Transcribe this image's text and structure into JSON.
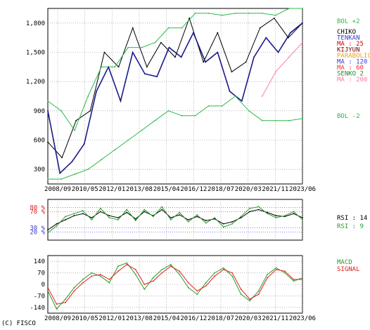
{
  "copyright": "(C) FISCO",
  "chart_data": [
    {
      "type": "line",
      "panel": "price",
      "x_labels": [
        "2008/09",
        "2010/05",
        "2012/01",
        "2013/08",
        "2015/04",
        "2016/12",
        "2018/07",
        "2020/03",
        "2021/11",
        "2023/06"
      ],
      "y_ticks": [
        300,
        600,
        900,
        1200,
        1500,
        1800
      ],
      "ylim": [
        150,
        1950
      ],
      "legend": [
        {
          "label": "BOL +2",
          "color": "#2db84b"
        },
        {
          "label": "CHIKO",
          "color": "#000000"
        },
        {
          "label": "TENKAN",
          "color": "#3b3bd0"
        },
        {
          "label": "MA : 25",
          "color": "#d00000"
        },
        {
          "label": "KIJYUN",
          "color": "#7a0000"
        },
        {
          "label": "PARABOLIC",
          "color": "#f0a020"
        },
        {
          "label": "MA : 120",
          "color": "#3b3bd0"
        },
        {
          "label": "MA : 60",
          "color": "#ff3030"
        },
        {
          "label": "SENKO 2",
          "color": "#2a8a2a"
        },
        {
          "label": "MA : 200",
          "color": "#ff7aa0"
        },
        {
          "label": "BOL -2",
          "color": "#2db84b"
        }
      ],
      "series": [
        {
          "name": "CHIKO",
          "values": [
            580,
            420,
            800,
            900,
            1500,
            1350,
            1750,
            1350,
            1600,
            1450,
            1850,
            1400,
            1700,
            1300,
            1400,
            1750,
            1850,
            1650,
            1800
          ]
        },
        {
          "name": "PRICE",
          "values": [
            900,
            260,
            380,
            560,
            1100,
            1350,
            1000,
            1500,
            1280,
            1250,
            1550,
            1450,
            1700,
            1400,
            1500,
            1100,
            1000,
            1450,
            1650,
            1500,
            1700,
            1800
          ]
        },
        {
          "name": "MA : 200",
          "values": [
            null,
            null,
            null,
            null,
            null,
            null,
            null,
            null,
            null,
            null,
            null,
            null,
            null,
            null,
            null,
            null,
            1050,
            1300,
            1450,
            1600
          ]
        },
        {
          "name": "BOL +2",
          "values": [
            1000,
            900,
            700,
            1050,
            1350,
            1350,
            1550,
            1550,
            1600,
            1750,
            1750,
            1900,
            1900,
            1880,
            1900,
            1900,
            1900,
            1880,
            1950,
            1950
          ]
        },
        {
          "name": "BOL -2",
          "values": [
            200,
            200,
            250,
            300,
            400,
            500,
            600,
            700,
            800,
            900,
            850,
            850,
            950,
            950,
            1050,
            900,
            800,
            800,
            800,
            820
          ]
        }
      ]
    },
    {
      "type": "line",
      "panel": "rsi",
      "y_ticks": [
        20,
        30,
        70,
        80
      ],
      "y_labels": [
        "20 %",
        "30 %",
        "70 %",
        "80 %"
      ],
      "ylim": [
        0,
        100
      ],
      "legend": [
        {
          "label": "RSI : 14",
          "color": "#000000"
        },
        {
          "label": "RSI : 9",
          "color": "#2a9a2a"
        }
      ],
      "series": [
        {
          "name": "RSI : 14",
          "values": [
            25,
            40,
            50,
            60,
            65,
            55,
            70,
            60,
            55,
            68,
            52,
            70,
            60,
            75,
            55,
            62,
            50,
            58,
            48,
            52,
            40,
            45,
            55,
            70,
            75,
            68,
            60,
            58,
            65,
            55
          ]
        },
        {
          "name": "RSI : 9",
          "values": [
            18,
            35,
            58,
            65,
            72,
            50,
            78,
            55,
            50,
            75,
            48,
            75,
            58,
            82,
            50,
            68,
            45,
            62,
            42,
            55,
            32,
            40,
            58,
            78,
            82,
            65,
            55,
            60,
            70,
            50
          ]
        }
      ]
    },
    {
      "type": "line",
      "panel": "macd",
      "y_ticks": [
        -140,
        -70,
        0,
        70,
        140
      ],
      "ylim": [
        -175,
        175
      ],
      "legend": [
        {
          "label": "MACD",
          "color": "#2a9a2a"
        },
        {
          "label": "SIGNAL",
          "color": "#e02020"
        }
      ],
      "series": [
        {
          "name": "MACD",
          "values": [
            -40,
            -150,
            -90,
            -20,
            30,
            70,
            50,
            10,
            110,
            130,
            60,
            -30,
            40,
            90,
            120,
            60,
            -20,
            -60,
            10,
            70,
            100,
            50,
            -60,
            -100,
            -40,
            60,
            100,
            70,
            20,
            40
          ]
        },
        {
          "name": "SIGNAL",
          "values": [
            -20,
            -120,
            -110,
            -40,
            10,
            50,
            60,
            30,
            80,
            120,
            90,
            0,
            20,
            70,
            110,
            80,
            10,
            -40,
            -10,
            50,
            90,
            70,
            -30,
            -90,
            -60,
            40,
            90,
            80,
            30,
            30
          ]
        }
      ]
    }
  ]
}
